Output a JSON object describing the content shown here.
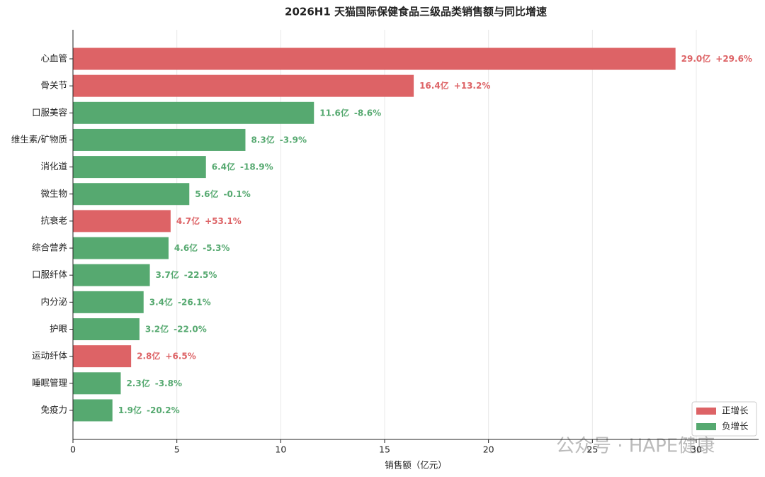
{
  "chart_data": {
    "type": "barh",
    "title": "2026H1 天猫国际保健食品三级品类销售额与同比增速",
    "xlabel": "销售额（亿元）",
    "categories": [
      "心血管",
      "骨关节",
      "口服美容",
      "维生素/矿物质",
      "消化道",
      "微生物",
      "抗衰老",
      "综合营养",
      "口服纤体",
      "内分泌",
      "护眼",
      "运动纤体",
      "睡眠管理",
      "免疫力"
    ],
    "values": [
      29.0,
      16.4,
      11.6,
      8.3,
      6.4,
      5.6,
      4.7,
      4.6,
      3.7,
      3.4,
      3.2,
      2.8,
      2.3,
      1.9
    ],
    "value_labels": [
      "29.0亿",
      "16.4亿",
      "11.6亿",
      "8.3亿",
      "6.4亿",
      "5.6亿",
      "4.7亿",
      "4.6亿",
      "3.7亿",
      "3.4亿",
      "3.2亿",
      "2.8亿",
      "2.3亿",
      "1.9亿"
    ],
    "growth": [
      29.6,
      13.2,
      -8.6,
      -3.9,
      -18.9,
      -0.1,
      53.1,
      -5.3,
      -22.5,
      -26.1,
      -22.0,
      6.5,
      -3.8,
      -20.2
    ],
    "growth_labels": [
      "+29.6%",
      "+13.2%",
      "-8.6%",
      "-3.9%",
      "-18.9%",
      "-0.1%",
      "+53.1%",
      "-5.3%",
      "-22.5%",
      "-26.1%",
      "-22.0%",
      "+6.5%",
      "-3.8%",
      "-20.2%"
    ],
    "legend": [
      {
        "name": "正增长",
        "color": "#dd6366"
      },
      {
        "name": "负增长",
        "color": "#56a970"
      }
    ],
    "legend_position": "lower right",
    "xlim": [
      0,
      33
    ],
    "xticks": [
      0,
      5,
      10,
      15,
      20,
      25,
      30
    ],
    "grid": true,
    "watermark": "公众号 · HAPE健康"
  }
}
